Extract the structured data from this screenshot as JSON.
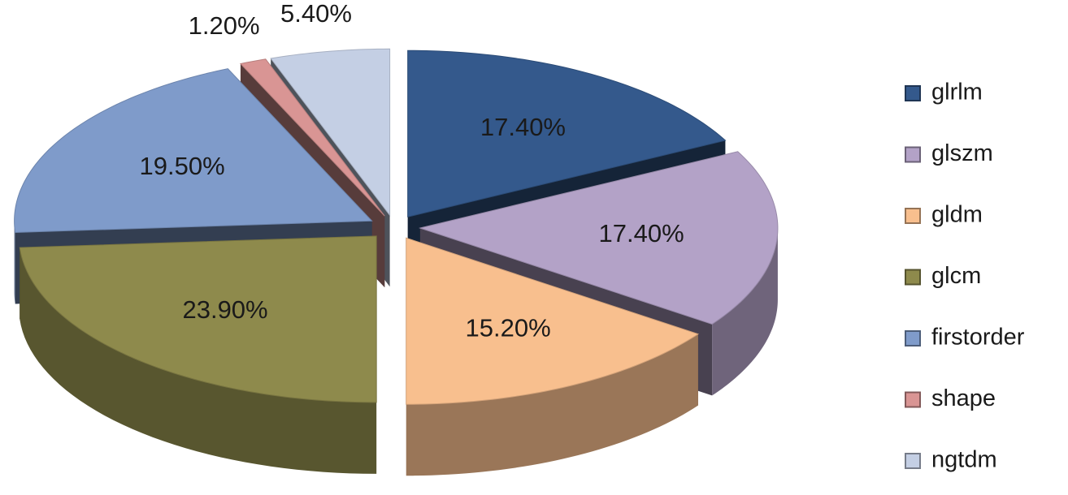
{
  "chart_data": {
    "type": "pie",
    "categories": [
      "glrlm",
      "glszm",
      "gldm",
      "glcm",
      "firstorder",
      "shape",
      "ngtdm"
    ],
    "values": [
      17.4,
      17.4,
      15.2,
      23.9,
      19.5,
      1.2,
      5.4
    ],
    "value_labels": [
      "17.40%",
      "17.40%",
      "15.20%",
      "23.90%",
      "19.50%",
      "1.20%",
      "5.40%"
    ],
    "colors": [
      "#34598c",
      "#b3a2c7",
      "#f8bf8e",
      "#8e8a4c",
      "#7f9bca",
      "#d99594",
      "#c4cfe4"
    ],
    "legend": "right"
  }
}
